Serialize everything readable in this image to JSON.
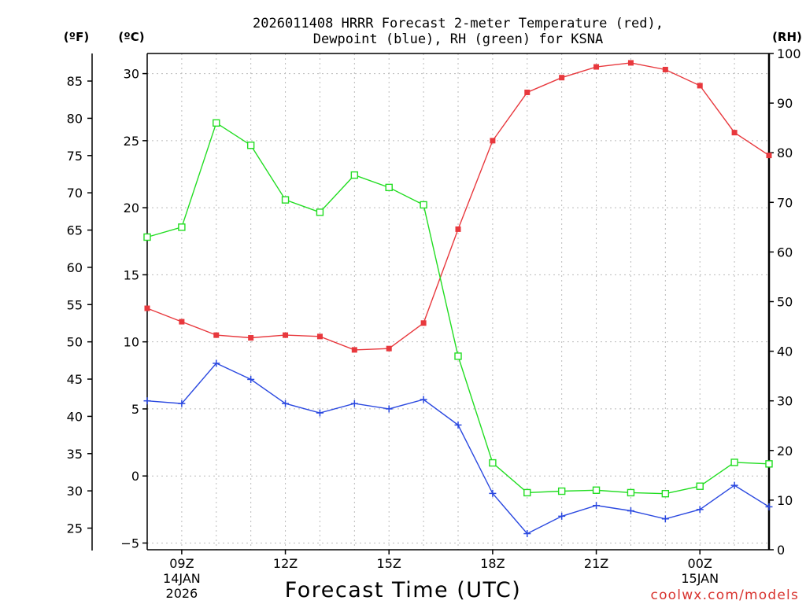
{
  "chart_data": {
    "type": "line",
    "title_line1": "2026011408 HRRR Forecast 2-meter Temperature (red),",
    "title_line2": "Dewpoint (blue), RH (green) for KSNA",
    "xlabel": "Forecast Time (UTC)",
    "watermark": "coolwx.com/models",
    "units": {
      "fahrenheit": "(ºF)",
      "celsius": "(ºC)",
      "rh": "(RH)"
    },
    "x_hours": [
      8,
      9,
      10,
      11,
      12,
      13,
      14,
      15,
      16,
      17,
      18,
      19,
      20,
      21,
      22,
      23,
      24,
      25,
      26
    ],
    "xlim": [
      8,
      26
    ],
    "x_ticks": [
      {
        "x": 9,
        "label": "09Z",
        "line2": "14JAN",
        "line3": "2026"
      },
      {
        "x": 12,
        "label": "12Z",
        "line2": "",
        "line3": ""
      },
      {
        "x": 15,
        "label": "15Z",
        "line2": "",
        "line3": ""
      },
      {
        "x": 18,
        "label": "18Z",
        "line2": "",
        "line3": ""
      },
      {
        "x": 21,
        "label": "21Z",
        "line2": "",
        "line3": ""
      },
      {
        "x": 24,
        "label": "00Z",
        "line2": "15JAN",
        "line3": ""
      }
    ],
    "celsius_axis": {
      "ylim": [
        -5.5,
        31.5
      ],
      "ticks": [
        -5,
        0,
        5,
        10,
        15,
        20,
        25,
        30
      ],
      "labels": [
        "−5",
        "0",
        "5",
        "10",
        "15",
        "20",
        "25",
        "30"
      ]
    },
    "fahrenheit_axis": {
      "ticks": [
        25,
        30,
        35,
        40,
        45,
        50,
        55,
        60,
        65,
        70,
        75,
        80,
        85
      ]
    },
    "rh_axis": {
      "ylim": [
        0,
        100
      ],
      "ticks": [
        0,
        10,
        20,
        30,
        40,
        50,
        60,
        70,
        80,
        90,
        100
      ]
    },
    "series": [
      {
        "name": "Temperature",
        "axis": "celsius",
        "color": "#e8383d",
        "marker": "filled-square",
        "values": [
          12.5,
          11.5,
          10.5,
          10.3,
          10.5,
          10.4,
          9.4,
          9.5,
          11.4,
          18.4,
          25.0,
          28.6,
          29.7,
          30.5,
          30.8,
          30.3,
          29.1,
          25.6,
          23.9
        ]
      },
      {
        "name": "Dewpoint",
        "axis": "celsius",
        "color": "#2b49e0",
        "marker": "plus",
        "values": [
          5.6,
          5.4,
          8.4,
          7.2,
          5.4,
          4.7,
          5.4,
          5.0,
          5.7,
          3.8,
          -1.3,
          -4.3,
          -3.0,
          -2.2,
          -2.6,
          -3.2,
          -2.5,
          -0.7,
          -2.3
        ]
      },
      {
        "name": "RH",
        "axis": "rh",
        "color": "#22dd22",
        "marker": "open-square",
        "values": [
          63,
          65,
          86,
          81.5,
          70.5,
          68,
          75.5,
          73,
          69.5,
          39,
          17.5,
          11.5,
          11.8,
          12,
          11.5,
          11.3,
          12.8,
          17.6,
          17.3
        ]
      }
    ]
  }
}
